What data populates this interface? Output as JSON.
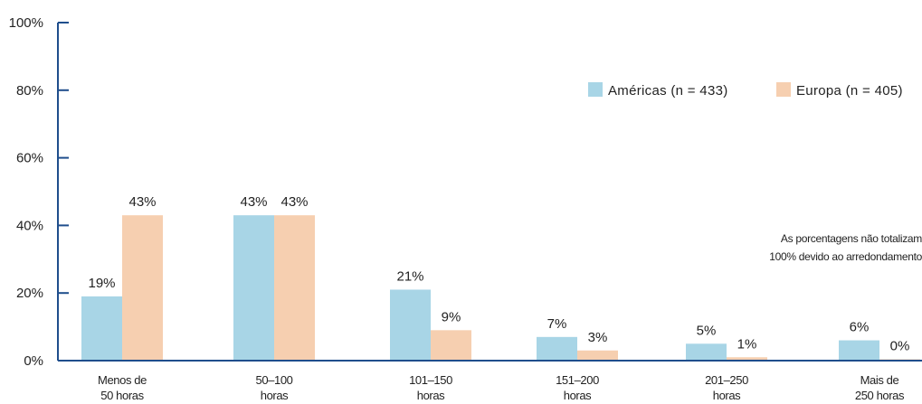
{
  "chart_data": {
    "type": "bar",
    "categories": [
      [
        "Menos de",
        "50 horas"
      ],
      [
        "50–100",
        "horas"
      ],
      [
        "101–150",
        "horas"
      ],
      [
        "151–200",
        "horas"
      ],
      [
        "201–250",
        "horas"
      ],
      [
        "Mais de",
        "250 horas"
      ]
    ],
    "series": [
      {
        "name": "Américas (n = 433)",
        "color": "#a8d5e6",
        "values": [
          19,
          43,
          21,
          7,
          5,
          6
        ],
        "labels": [
          "19%",
          "43%",
          "21%",
          "7%",
          "5%",
          "6%"
        ]
      },
      {
        "name": "Europa (n = 405)",
        "color": "#f6cfb0",
        "values": [
          43,
          43,
          9,
          3,
          1,
          0
        ],
        "labels": [
          "43%",
          "43%",
          "9%",
          "3%",
          "1%",
          "0%"
        ]
      }
    ],
    "ylim": [
      0,
      100
    ],
    "yticks": [
      "0%",
      "20%",
      "40%",
      "60%",
      "80%",
      "100%"
    ],
    "ytick_values": [
      0,
      20,
      40,
      60,
      80,
      100
    ],
    "axis_color": "#1f4e8c",
    "legend_position": "top-right",
    "grid": false,
    "note": [
      "As porcentagens não totalizam",
      "100% devido ao arredondamento"
    ]
  }
}
